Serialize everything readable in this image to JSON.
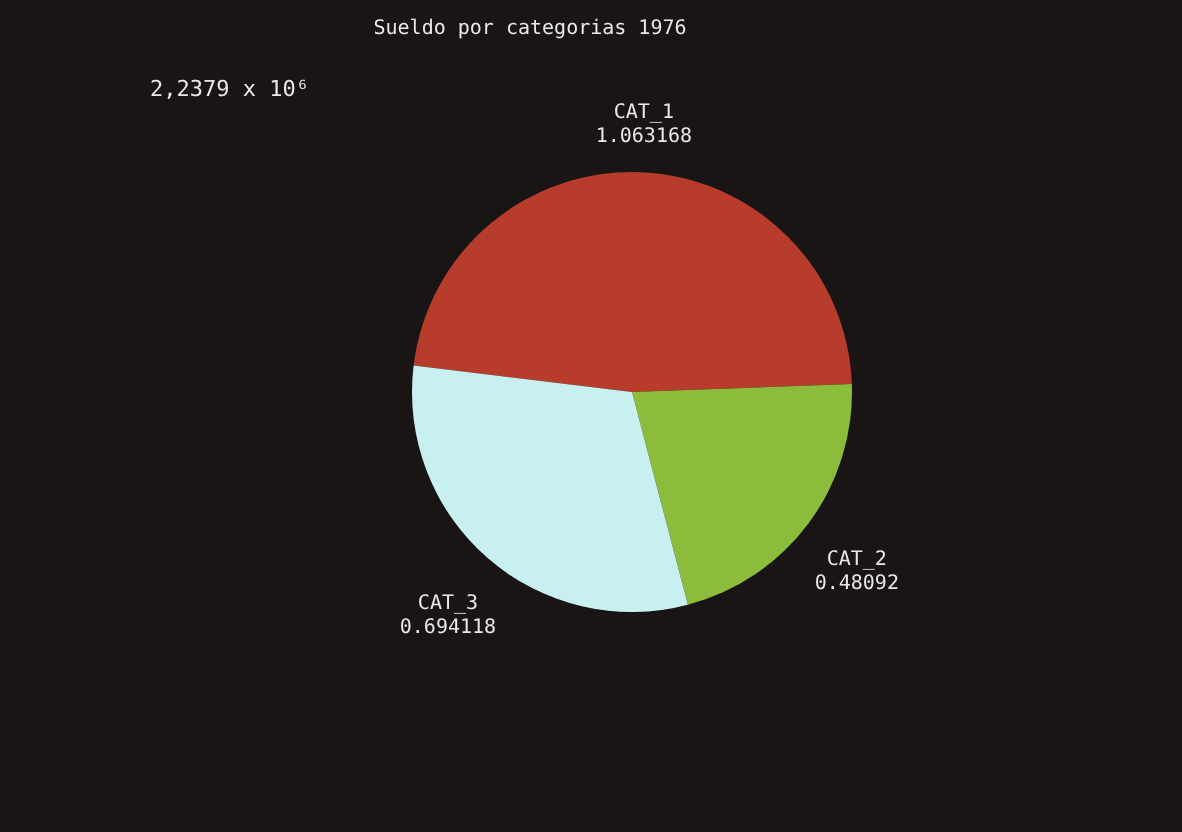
{
  "chart_data": {
    "type": "pie",
    "title": "Sueldo por categorias 1976",
    "annotations": [
      "2,2379 x 10⁶"
    ],
    "categories": [
      "CAT_1",
      "CAT_2",
      "CAT_3"
    ],
    "values": [
      1.063168,
      0.48092,
      0.694118
    ],
    "colors": [
      "#b83c2c",
      "#8cbc3c",
      "#c8f0f0"
    ],
    "data_labels": true
  }
}
